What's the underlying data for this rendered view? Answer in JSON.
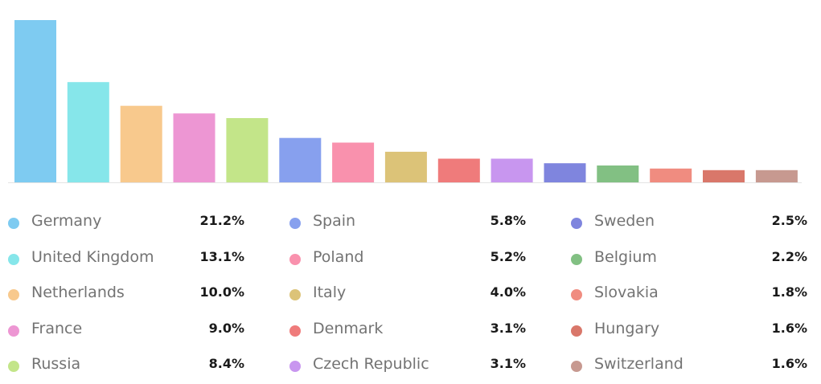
{
  "chart_data": {
    "type": "bar",
    "categories": [
      "Germany",
      "United Kingdom",
      "Netherlands",
      "France",
      "Russia",
      "Spain",
      "Poland",
      "Italy",
      "Denmark",
      "Czech Republic",
      "Sweden",
      "Belgium",
      "Slovakia",
      "Hungary",
      "Switzerland"
    ],
    "values": [
      21.2,
      13.1,
      10.0,
      9.0,
      8.4,
      5.8,
      5.2,
      4.0,
      3.1,
      3.1,
      2.5,
      2.2,
      1.8,
      1.6,
      1.6
    ],
    "value_labels": [
      "21.2%",
      "13.1%",
      "10.0%",
      "9.0%",
      "8.4%",
      "5.8%",
      "5.2%",
      "4.0%",
      "3.1%",
      "3.1%",
      "2.5%",
      "2.2%",
      "1.8%",
      "1.6%",
      "1.6%"
    ],
    "colors": [
      "#7ecbf1",
      "#86e6ea",
      "#f8c98d",
      "#ed96d3",
      "#c3e589",
      "#87a0ee",
      "#f991ad",
      "#dcc378",
      "#ef7b7b",
      "#c896ef",
      "#7f85de",
      "#82c083",
      "#f08c80",
      "#d9776a",
      "#c79990"
    ],
    "unit": "%",
    "ylim": [
      0,
      21.2
    ],
    "grid": false,
    "legend_position": "bottom"
  }
}
